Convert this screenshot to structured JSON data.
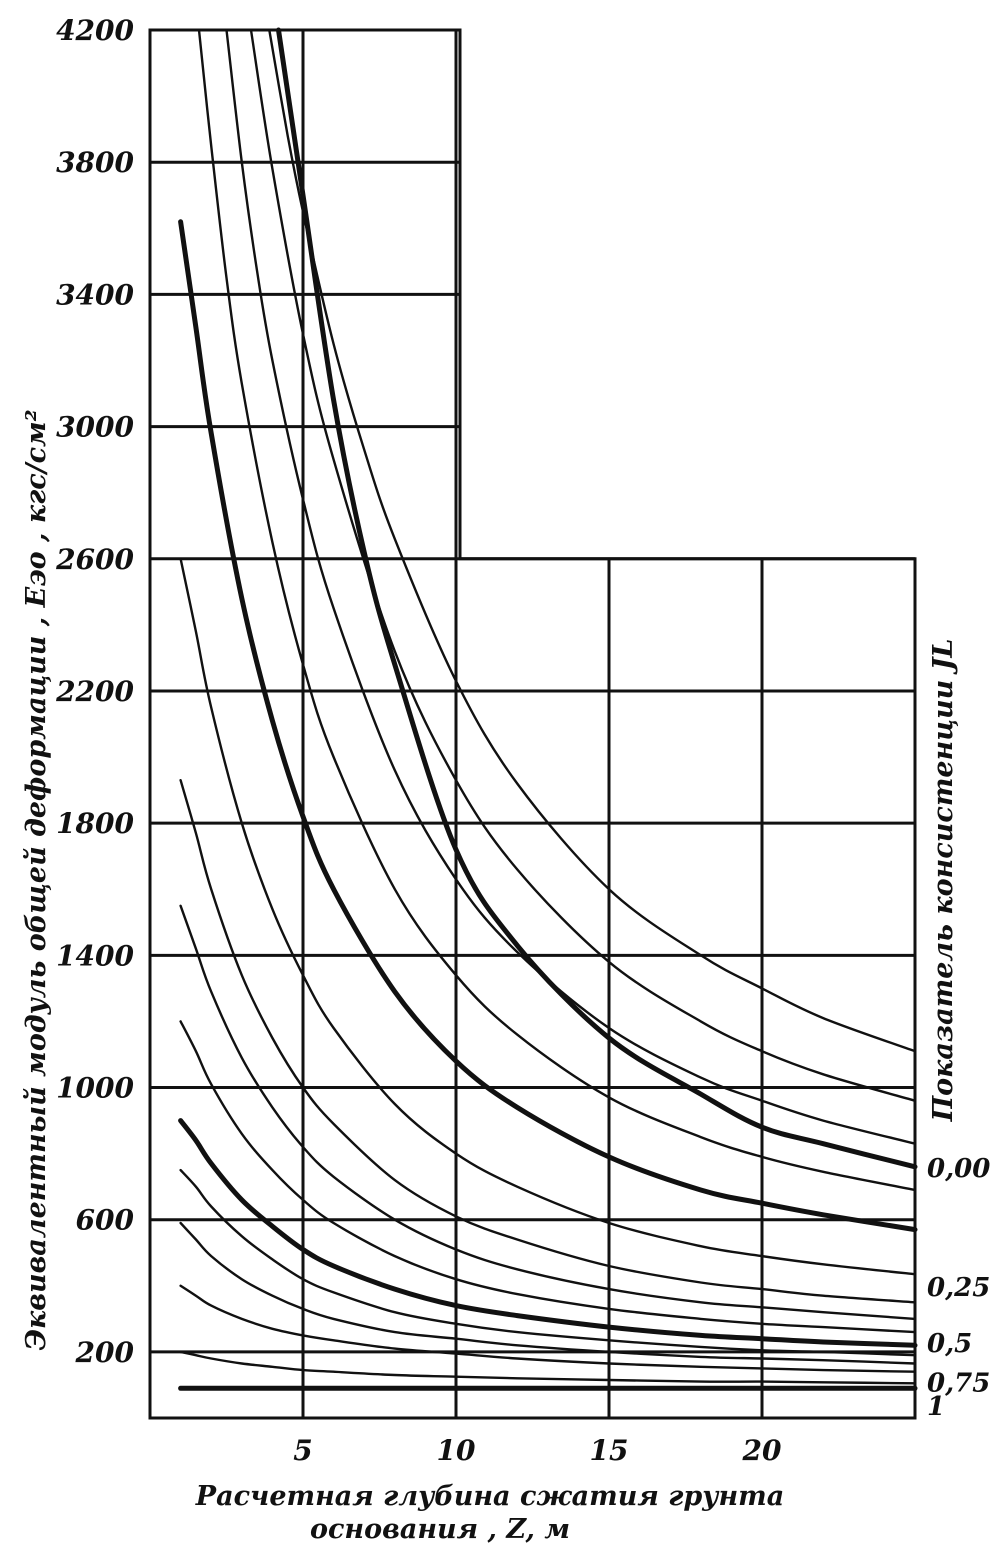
{
  "chart_data": {
    "type": "line",
    "title": "",
    "xlabel_line1": "Расчетная глубина сжатия грунта",
    "xlabel_line2": "основания , Z, м",
    "ylabel_prefix": "Эквивалентный модуль общей деформации ,",
    "ylabel_symbol": "Eэо",
    "ylabel_unit": ", кгс/см²",
    "right_label": "Показатель консистенции JL",
    "x_ticks": [
      "5",
      "10",
      "15",
      "20"
    ],
    "y_ticks": [
      "200",
      "600",
      "1000",
      "1400",
      "1800",
      "2200",
      "2600",
      "3000",
      "3400",
      "3800",
      "4200"
    ],
    "xlim": [
      0,
      25
    ],
    "ylim": [
      0,
      4200
    ],
    "grid": true,
    "consistency_labels": [
      {
        "text": "0,00",
        "y": 760
      },
      {
        "text": "0,25",
        "y": 400
      },
      {
        "text": "0,5",
        "y": 230
      },
      {
        "text": "0,75",
        "y": 110
      },
      {
        "text": "1",
        "y": 40
      }
    ],
    "series": [
      {
        "x": [
          1,
          1.5,
          2,
          3,
          4,
          5,
          6,
          8,
          10,
          12,
          15,
          18,
          20,
          22,
          25
        ],
        "y": [
          90,
          90,
          90,
          90,
          90,
          90,
          90,
          90,
          90,
          90,
          90,
          90,
          90,
          90,
          90
        ],
        "bold": true
      },
      {
        "x": [
          1,
          1.5,
          2,
          3,
          4,
          5,
          6,
          8,
          10,
          12,
          15,
          18,
          20,
          22,
          25
        ],
        "y": [
          200,
          190,
          180,
          165,
          155,
          145,
          140,
          130,
          125,
          120,
          115,
          110,
          110,
          108,
          105
        ],
        "bold": false
      },
      {
        "x": [
          1,
          1.5,
          2,
          3,
          4,
          5,
          6,
          8,
          10,
          12,
          15,
          18,
          20,
          22,
          25
        ],
        "y": [
          400,
          370,
          340,
          300,
          270,
          250,
          235,
          210,
          195,
          180,
          165,
          155,
          150,
          145,
          140
        ],
        "bold": false
      },
      {
        "x": [
          1,
          1.5,
          2,
          3,
          4,
          5,
          6,
          8,
          10,
          12,
          15,
          18,
          20,
          22,
          25
        ],
        "y": [
          590,
          540,
          490,
          420,
          370,
          330,
          300,
          260,
          240,
          220,
          200,
          185,
          180,
          175,
          165
        ],
        "bold": false
      },
      {
        "x": [
          1,
          1.5,
          2,
          3,
          4,
          5,
          6,
          8,
          10,
          12,
          15,
          18,
          20,
          22,
          25
        ],
        "y": [
          750,
          700,
          640,
          550,
          480,
          420,
          380,
          320,
          285,
          260,
          235,
          215,
          205,
          200,
          190
        ],
        "bold": false
      },
      {
        "x": [
          1,
          1.5,
          2,
          3,
          4,
          5,
          6,
          8,
          10,
          12,
          15,
          18,
          20,
          22,
          25
        ],
        "y": [
          900,
          840,
          770,
          660,
          580,
          510,
          460,
          390,
          340,
          310,
          275,
          250,
          240,
          230,
          220
        ],
        "bold": true
      },
      {
        "x": [
          1,
          1.5,
          2,
          3,
          4,
          5,
          6,
          8,
          10,
          12,
          15,
          18,
          20,
          22,
          25
        ],
        "y": [
          1200,
          1110,
          1010,
          860,
          750,
          660,
          590,
          490,
          420,
          375,
          330,
          300,
          285,
          275,
          260
        ],
        "bold": false
      },
      {
        "x": [
          1,
          1.5,
          2,
          3,
          4,
          5,
          6,
          8,
          10,
          12,
          15,
          18,
          20,
          22,
          25
        ],
        "y": [
          1550,
          1420,
          1290,
          1090,
          940,
          820,
          730,
          600,
          510,
          450,
          390,
          350,
          335,
          320,
          300
        ],
        "bold": false
      },
      {
        "x": [
          1,
          1.5,
          2,
          3,
          4,
          5,
          6,
          8,
          10,
          12,
          15,
          18,
          20,
          22,
          25
        ],
        "y": [
          1930,
          1770,
          1600,
          1340,
          1150,
          1000,
          890,
          720,
          610,
          540,
          460,
          410,
          390,
          370,
          350
        ],
        "bold": false
      },
      {
        "x": [
          1,
          1.5,
          2,
          3,
          4,
          5,
          6,
          8,
          10,
          12,
          15,
          18,
          20,
          22,
          25
        ],
        "y": [
          2600,
          2380,
          2150,
          1800,
          1540,
          1340,
          1180,
          950,
          800,
          700,
          590,
          520,
          490,
          465,
          435
        ],
        "bold": false
      },
      {
        "x": [
          1,
          1.5,
          2,
          3,
          4,
          5,
          6,
          8,
          10,
          12,
          15,
          18,
          20,
          22,
          25
        ],
        "y": [
          3620,
          3300,
          2980,
          2480,
          2110,
          1820,
          1600,
          1290,
          1080,
          940,
          790,
          690,
          650,
          615,
          570
        ],
        "bold": true
      },
      {
        "x": [
          1.6,
          2,
          2.5,
          3,
          4,
          5,
          6,
          8,
          10,
          12,
          15,
          18,
          20,
          22,
          25
        ],
        "y": [
          4200,
          3850,
          3450,
          3130,
          2650,
          2280,
          2000,
          1600,
          1340,
          1160,
          970,
          850,
          790,
          745,
          690
        ],
        "bold": false
      },
      {
        "x": [
          2.5,
          3,
          3.5,
          4,
          5,
          6,
          8,
          10,
          12,
          15,
          18,
          20,
          22,
          25
        ],
        "y": [
          4200,
          3800,
          3470,
          3200,
          2780,
          2450,
          1960,
          1630,
          1410,
          1180,
          1030,
          960,
          900,
          830
        ],
        "bold": false
      },
      {
        "x": [
          3.3,
          4,
          5,
          6,
          8,
          10,
          12,
          15,
          18,
          20,
          22,
          25
        ],
        "y": [
          4200,
          3780,
          3280,
          2900,
          2320,
          1930,
          1660,
          1380,
          1200,
          1110,
          1040,
          960
        ],
        "bold": false
      },
      {
        "x": [
          3.9,
          4.5,
          5,
          6,
          7,
          8,
          10,
          12,
          15,
          18,
          20,
          22,
          25
        ],
        "y": [
          4200,
          3880,
          3650,
          3250,
          2930,
          2660,
          2230,
          1920,
          1600,
          1400,
          1300,
          1210,
          1110
        ],
        "bold": false
      },
      {
        "x": [
          4.2,
          5,
          6,
          7,
          8,
          10,
          12,
          15,
          18,
          20,
          22,
          25
        ],
        "y": [
          4200,
          3700,
          3080,
          2620,
          2280,
          1720,
          1430,
          1150,
          980,
          880,
          830,
          760
        ],
        "bold": true
      }
    ]
  }
}
